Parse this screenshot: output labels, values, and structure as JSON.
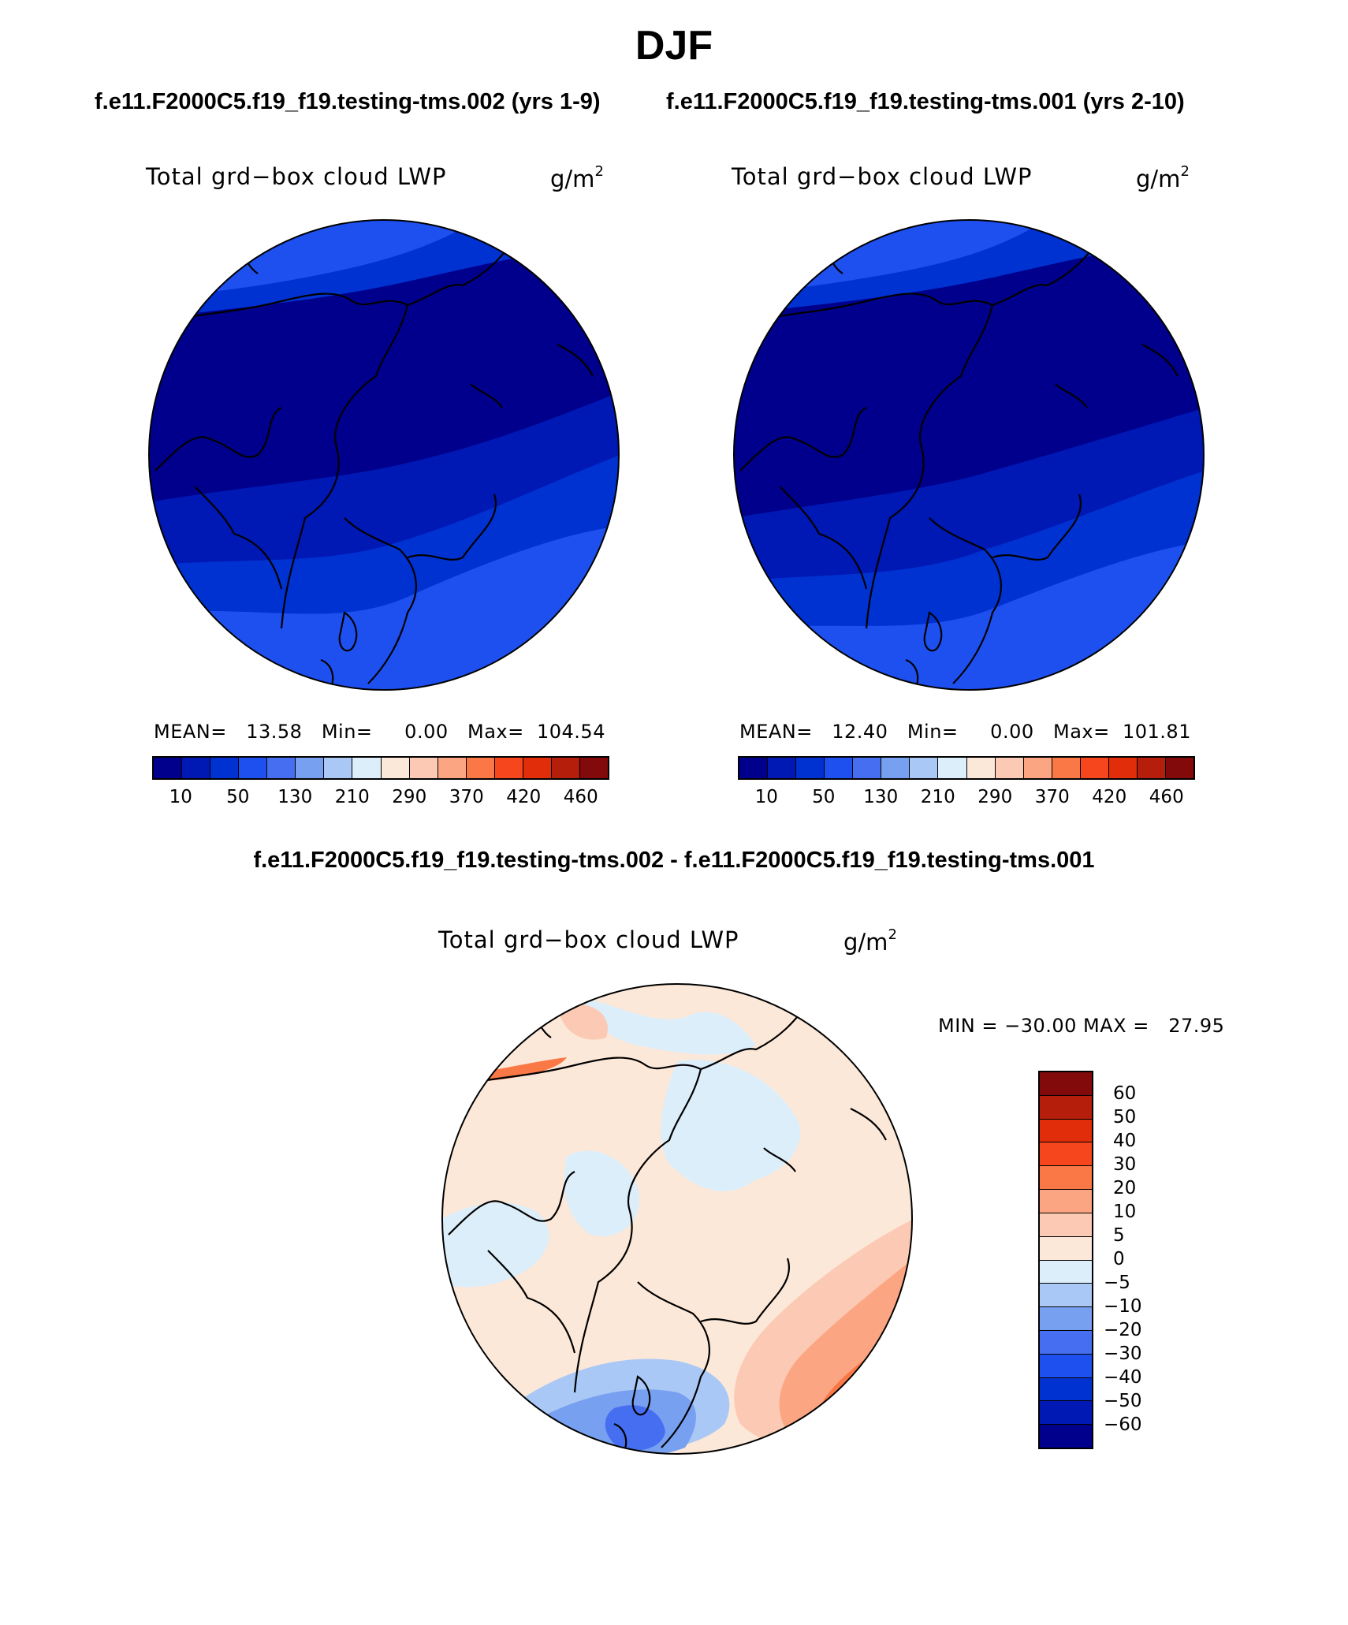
{
  "title": "DJF",
  "case1": {
    "title": "f.e11.F2000C5.f19_f19.testing-tms.002 (yrs 1-9)",
    "var_title": "Total grd−box cloud LWP",
    "units_base": "g/m",
    "units_exp": "2",
    "stats": "MEAN=   13.58   Min=     0.00   Max=  104.54"
  },
  "case2": {
    "title": "f.e11.F2000C5.f19_f19.testing-tms.001 (yrs 2-10)",
    "var_title": "Total grd−box cloud LWP",
    "units_base": "g/m",
    "units_exp": "2",
    "stats": "MEAN=   12.40   Min=     0.00   Max=  101.81"
  },
  "diff": {
    "title": "f.e11.F2000C5.f19_f19.testing-tms.002 - f.e11.F2000C5.f19_f19.testing-tms.001",
    "var_title": "Total grd−box cloud LWP",
    "units_base": "g/m",
    "units_exp": "2",
    "stats": "MIN = −30.00 MAX =   27.95"
  },
  "colorbar_main": {
    "colors": [
      "#00008c",
      "#0018b4",
      "#0032d2",
      "#1e50f0",
      "#466ef0",
      "#78a0f0",
      "#aac8f5",
      "#dceefa",
      "#fce8d8",
      "#fccab4",
      "#fca582",
      "#fa7846",
      "#f5461e",
      "#e12d0a",
      "#b41e0a",
      "#820a0a"
    ],
    "labels": [
      "10",
      "50",
      "130",
      "210",
      "290",
      "370",
      "420",
      "460"
    ]
  },
  "colorbar_diff": {
    "colors": [
      "#820a0a",
      "#b41e0a",
      "#e12d0a",
      "#f5461e",
      "#fa7846",
      "#fca582",
      "#fccab4",
      "#fce8d8",
      "#dceefa",
      "#aac8f5",
      "#78a0f0",
      "#466ef0",
      "#1e50f0",
      "#0032d2",
      "#0018b4",
      "#00008c"
    ],
    "labels": [
      "60",
      "50",
      "40",
      "30",
      "20",
      "10",
      "5",
      "0",
      "−5",
      "−10",
      "−20",
      "−30",
      "−40",
      "−50",
      "−60"
    ]
  },
  "map_colors": {
    "deep": "#00008c",
    "dark": "#0018b4",
    "mid": "#0032d2",
    "light": "#1e50f0",
    "pale_blue": "#dceefa",
    "blue2": "#aac8f5",
    "blue3": "#78a0f0",
    "blue4": "#466ef0",
    "pale_red": "#fce8d8",
    "red2": "#fccab4",
    "red3": "#fca582",
    "red4": "#fa7846",
    "red5": "#f5461e"
  }
}
